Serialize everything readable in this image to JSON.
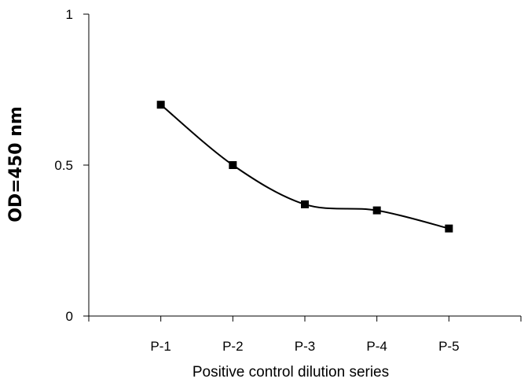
{
  "chart_data": {
    "type": "line",
    "categories": [
      "P-1",
      "P-2",
      "P-3",
      "P-4",
      "P-5"
    ],
    "series": [
      {
        "values": [
          0.7,
          0.5,
          0.37,
          0.35,
          0.29
        ]
      }
    ],
    "xlabel": "Positive control dilution series",
    "ylabel": "OD=450 nm",
    "ylim": [
      0,
      1
    ],
    "yticks": [
      0,
      0.5,
      1
    ],
    "ytick_labels": [
      "0",
      "0.5",
      "1"
    ],
    "grid": false,
    "legend": "none",
    "line_style": "smoothed",
    "marker": "square",
    "colors": {
      "line": "#000000",
      "marker": "#000000",
      "axis": "#000000"
    }
  }
}
